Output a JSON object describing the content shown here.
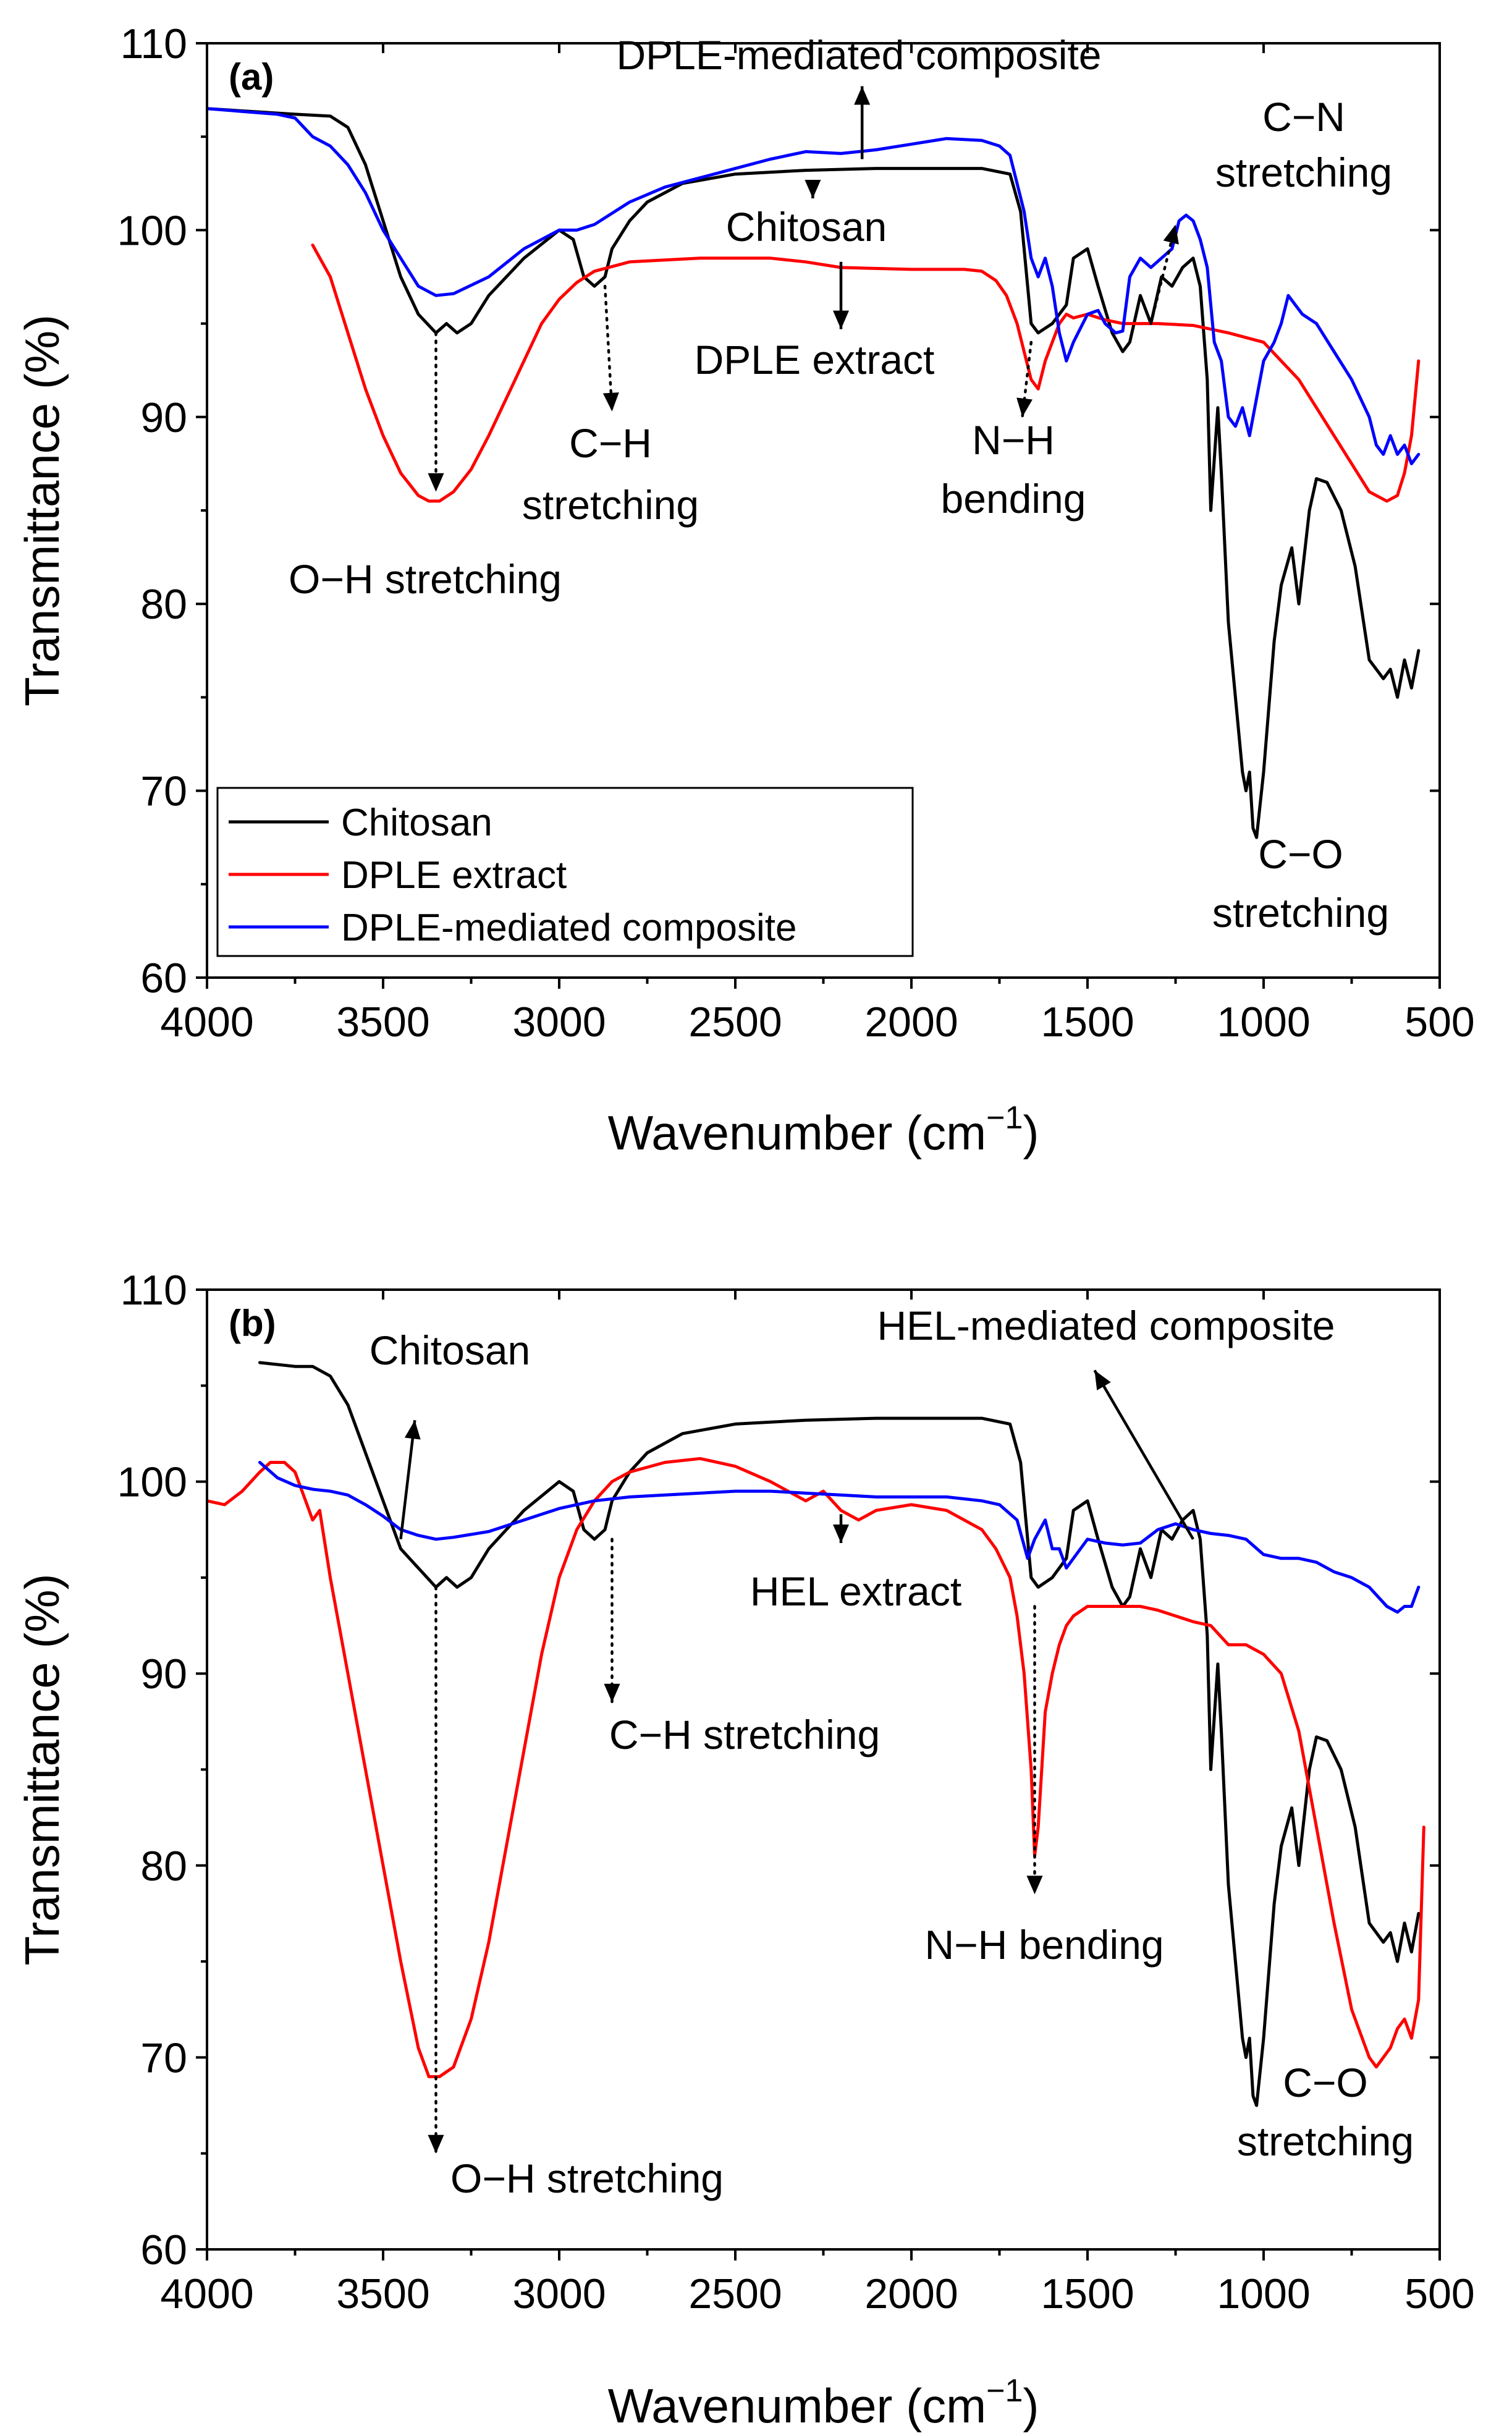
{
  "chart_data": [
    {
      "type": "line",
      "panel_label": "(a)",
      "xlabel": "Wavenumber (cm",
      "xlabel_sup": "−1",
      "xlabel_end": ")",
      "ylabel": "Transmittance (%)",
      "xlim": [
        4000,
        500
      ],
      "ylim": [
        60,
        110
      ],
      "xticks": [
        4000,
        3500,
        3000,
        2500,
        2000,
        1500,
        1000,
        500
      ],
      "yticks": [
        60,
        70,
        80,
        90,
        100,
        110
      ],
      "legend": {
        "placement": "lower-left",
        "entries": [
          {
            "label": "Chitosan",
            "color": "#000000"
          },
          {
            "label": "DPLE extract",
            "color": "#ff0000"
          },
          {
            "label": "DPLE-mediated composite",
            "color": "#0000ff"
          }
        ]
      },
      "series": [
        {
          "name": "Chitosan",
          "color": "#000000",
          "x": [
            4000,
            3750,
            3650,
            3600,
            3550,
            3500,
            3450,
            3400,
            3350,
            3320,
            3290,
            3250,
            3200,
            3100,
            3000,
            2960,
            2930,
            2900,
            2870,
            2850,
            2800,
            2750,
            2650,
            2500,
            2300,
            2100,
            1900,
            1800,
            1720,
            1690,
            1660,
            1640,
            1600,
            1560,
            1540,
            1500,
            1470,
            1430,
            1400,
            1380,
            1350,
            1320,
            1290,
            1260,
            1230,
            1200,
            1180,
            1160,
            1150,
            1130,
            1120,
            1110,
            1100,
            1080,
            1060,
            1050,
            1040,
            1030,
            1020,
            1000,
            970,
            950,
            920,
            900,
            870,
            850,
            820,
            780,
            740,
            700,
            680,
            660,
            640,
            620,
            600,
            580,
            560
          ],
          "y": [
            106.5,
            106.2,
            106.1,
            105.5,
            103.5,
            100.5,
            97.5,
            95.5,
            94.5,
            95.0,
            94.5,
            95.0,
            96.5,
            98.5,
            100.0,
            99.5,
            97.5,
            97.0,
            97.5,
            99.0,
            100.5,
            101.5,
            102.5,
            103.0,
            103.2,
            103.3,
            103.3,
            103.3,
            103.0,
            101.0,
            95.0,
            94.5,
            95.0,
            96.0,
            98.5,
            99.0,
            97.0,
            94.5,
            93.5,
            94.0,
            96.5,
            95.0,
            97.5,
            97.0,
            98.0,
            98.5,
            97.0,
            92.0,
            85.0,
            90.5,
            87.0,
            83.0,
            79.0,
            75.0,
            71.0,
            70.0,
            71.0,
            68.0,
            67.5,
            71.0,
            78.0,
            81.0,
            83.0,
            80.0,
            85.0,
            86.7,
            86.5,
            85.0,
            82.0,
            77.0,
            76.5,
            76.0,
            76.5,
            75.0,
            77.0,
            75.5,
            77.5
          ]
        },
        {
          "name": "DPLE extract",
          "color": "#ff0000",
          "x": [
            3700,
            3650,
            3600,
            3550,
            3500,
            3450,
            3400,
            3370,
            3340,
            3300,
            3250,
            3200,
            3150,
            3100,
            3050,
            3000,
            2950,
            2900,
            2800,
            2600,
            2400,
            2300,
            2200,
            2000,
            1850,
            1800,
            1760,
            1730,
            1700,
            1680,
            1660,
            1640,
            1620,
            1600,
            1580,
            1560,
            1540,
            1500,
            1450,
            1400,
            1300,
            1200,
            1100,
            1000,
            950,
            900,
            850,
            800,
            750,
            700,
            650,
            620,
            600,
            580,
            560
          ],
          "y": [
            99.2,
            97.5,
            94.5,
            91.5,
            89.0,
            87.0,
            85.8,
            85.5,
            85.5,
            86.0,
            87.2,
            89.0,
            91.0,
            93.0,
            95.0,
            96.3,
            97.2,
            97.8,
            98.3,
            98.5,
            98.5,
            98.3,
            98.0,
            97.9,
            97.9,
            97.8,
            97.3,
            96.5,
            95.0,
            93.5,
            92.0,
            91.5,
            93.0,
            94.0,
            95.0,
            95.5,
            95.3,
            95.5,
            95.2,
            95.0,
            95.0,
            94.9,
            94.5,
            94.0,
            93.0,
            92.0,
            90.5,
            89.0,
            87.5,
            86.0,
            85.5,
            85.8,
            87.0,
            89.0,
            93.0
          ]
        },
        {
          "name": "DPLE-mediated composite",
          "color": "#0000ff",
          "x": [
            4000,
            3800,
            3750,
            3700,
            3650,
            3600,
            3550,
            3500,
            3450,
            3400,
            3350,
            3300,
            3200,
            3100,
            3000,
            2950,
            2900,
            2800,
            2700,
            2600,
            2500,
            2400,
            2300,
            2200,
            2100,
            2000,
            1900,
            1800,
            1750,
            1720,
            1700,
            1680,
            1660,
            1640,
            1620,
            1600,
            1580,
            1560,
            1540,
            1500,
            1470,
            1450,
            1420,
            1400,
            1380,
            1350,
            1320,
            1290,
            1260,
            1240,
            1220,
            1200,
            1180,
            1160,
            1140,
            1120,
            1100,
            1080,
            1060,
            1040,
            1020,
            1000,
            970,
            950,
            930,
            910,
            890,
            850,
            800,
            750,
            700,
            680,
            660,
            640,
            620,
            600,
            580,
            560
          ],
          "y": [
            106.5,
            106.2,
            106.0,
            105.0,
            104.5,
            103.5,
            102.0,
            100.0,
            98.5,
            97.0,
            96.5,
            96.6,
            97.5,
            99.0,
            100.0,
            100.0,
            100.3,
            101.5,
            102.3,
            102.8,
            103.3,
            103.8,
            104.2,
            104.1,
            104.3,
            104.6,
            104.9,
            104.8,
            104.5,
            104.0,
            102.5,
            101.0,
            98.5,
            97.5,
            98.5,
            97.0,
            94.5,
            93.0,
            94.0,
            95.5,
            95.7,
            95.0,
            94.5,
            94.6,
            97.5,
            98.5,
            98.0,
            98.5,
            99.0,
            100.5,
            100.8,
            100.5,
            99.5,
            98.0,
            94.0,
            93.0,
            90.0,
            89.5,
            90.5,
            89.0,
            91.0,
            93.0,
            94.0,
            95.0,
            96.5,
            96.0,
            95.5,
            95.0,
            93.5,
            92.0,
            90.0,
            88.5,
            88.0,
            89.0,
            88.0,
            88.5,
            87.5,
            88.0
          ]
        }
      ],
      "annotations": [
        {
          "lines": [
            "DPLE-mediated composite"
          ]
        },
        {
          "lines": [
            "Chitosan"
          ]
        },
        {
          "lines": [
            "DPLE extract"
          ]
        },
        {
          "lines": [
            "C−N",
            "stretching"
          ]
        },
        {
          "lines": [
            "C−H",
            "stretching"
          ]
        },
        {
          "lines": [
            "O−H stretching"
          ]
        },
        {
          "lines": [
            "N−H",
            "bending"
          ]
        },
        {
          "lines": [
            "C−O",
            "stretching"
          ]
        }
      ]
    },
    {
      "type": "line",
      "panel_label": "(b)",
      "xlabel": "Wavenumber (cm",
      "xlabel_sup": "−1",
      "xlabel_end": ")",
      "ylabel": "Transmittance (%)",
      "xlim": [
        4000,
        500
      ],
      "ylim": [
        60,
        110
      ],
      "xticks": [
        4000,
        3500,
        3000,
        2500,
        2000,
        1500,
        1000,
        500
      ],
      "yticks": [
        60,
        70,
        80,
        90,
        100,
        110
      ],
      "series": [
        {
          "name": "Chitosan",
          "color": "#000000",
          "x": [
            3850,
            3750,
            3700,
            3650,
            3600,
            3550,
            3500,
            3450,
            3400,
            3350,
            3320,
            3290,
            3250,
            3200,
            3100,
            3000,
            2960,
            2930,
            2900,
            2870,
            2850,
            2800,
            2750,
            2650,
            2500,
            2300,
            2100,
            1900,
            1800,
            1720,
            1690,
            1660,
            1640,
            1600,
            1560,
            1540,
            1500,
            1470,
            1430,
            1400,
            1380,
            1350,
            1320,
            1290,
            1260,
            1230,
            1200,
            1180,
            1160,
            1150,
            1130,
            1120,
            1110,
            1100,
            1080,
            1060,
            1050,
            1040,
            1030,
            1020,
            1000,
            970,
            950,
            920,
            900,
            870,
            850,
            820,
            780,
            740,
            700,
            680,
            660,
            640,
            620,
            600,
            580,
            560
          ],
          "y": [
            106.2,
            106.0,
            106.0,
            105.5,
            104.0,
            101.5,
            99.0,
            96.5,
            95.5,
            94.5,
            95.0,
            94.5,
            95.0,
            96.5,
            98.5,
            100.0,
            99.5,
            97.5,
            97.0,
            97.5,
            99.0,
            100.5,
            101.5,
            102.5,
            103.0,
            103.2,
            103.3,
            103.3,
            103.3,
            103.0,
            101.0,
            95.0,
            94.5,
            95.0,
            96.0,
            98.5,
            99.0,
            97.0,
            94.5,
            93.5,
            94.0,
            96.5,
            95.0,
            97.5,
            97.0,
            98.0,
            98.5,
            97.0,
            92.0,
            85.0,
            90.5,
            87.0,
            83.0,
            79.0,
            75.0,
            71.0,
            70.0,
            71.0,
            68.0,
            67.5,
            71.0,
            78.0,
            81.0,
            83.0,
            80.0,
            85.0,
            86.7,
            86.5,
            85.0,
            82.0,
            77.0,
            76.5,
            76.0,
            76.5,
            75.0,
            77.0,
            75.5,
            77.5
          ]
        },
        {
          "name": "HEL extract",
          "color": "#ff0000",
          "x": [
            4000,
            3950,
            3900,
            3850,
            3820,
            3780,
            3750,
            3720,
            3700,
            3680,
            3650,
            3600,
            3550,
            3500,
            3450,
            3400,
            3370,
            3340,
            3300,
            3250,
            3200,
            3150,
            3100,
            3050,
            3000,
            2950,
            2900,
            2850,
            2800,
            2700,
            2600,
            2500,
            2400,
            2300,
            2250,
            2200,
            2150,
            2100,
            2000,
            1900,
            1800,
            1760,
            1720,
            1700,
            1680,
            1660,
            1650,
            1640,
            1630,
            1620,
            1600,
            1580,
            1560,
            1540,
            1500,
            1450,
            1400,
            1350,
            1300,
            1250,
            1200,
            1150,
            1100,
            1050,
            1000,
            950,
            900,
            850,
            800,
            750,
            700,
            680,
            660,
            640,
            620,
            600,
            580,
            560,
            545
          ],
          "y": [
            99.0,
            98.8,
            99.5,
            100.5,
            101.0,
            101.0,
            100.5,
            99.0,
            98.0,
            98.5,
            95.0,
            90.0,
            85.0,
            80.0,
            75.0,
            70.5,
            69.0,
            69.0,
            69.5,
            72.0,
            76.0,
            81.0,
            86.0,
            91.0,
            95.0,
            97.5,
            99.0,
            100.0,
            100.5,
            101.0,
            101.2,
            100.8,
            100.0,
            99.0,
            99.5,
            98.5,
            98.0,
            98.5,
            98.8,
            98.5,
            97.5,
            96.5,
            95.0,
            93.0,
            90.0,
            85.0,
            80.5,
            82.0,
            85.0,
            88.0,
            90.0,
            91.5,
            92.5,
            93.0,
            93.5,
            93.5,
            93.5,
            93.5,
            93.3,
            93.0,
            92.7,
            92.5,
            91.5,
            91.5,
            91.0,
            90.0,
            87.0,
            82.0,
            77.0,
            72.5,
            70.0,
            69.5,
            70.0,
            70.5,
            71.5,
            72.0,
            71.0,
            73.0,
            82.0
          ]
        },
        {
          "name": "HEL-mediated composite",
          "color": "#0000ff",
          "x": [
            3850,
            3800,
            3750,
            3700,
            3650,
            3600,
            3550,
            3500,
            3450,
            3400,
            3350,
            3300,
            3200,
            3100,
            3000,
            2900,
            2800,
            2700,
            2600,
            2500,
            2400,
            2300,
            2200,
            2100,
            2000,
            1900,
            1800,
            1750,
            1700,
            1670,
            1650,
            1620,
            1600,
            1580,
            1560,
            1540,
            1500,
            1450,
            1400,
            1350,
            1300,
            1250,
            1200,
            1150,
            1100,
            1050,
            1000,
            950,
            900,
            850,
            800,
            750,
            700,
            650,
            620,
            600,
            580,
            560
          ],
          "y": [
            101.0,
            100.2,
            99.8,
            99.6,
            99.5,
            99.3,
            98.8,
            98.2,
            97.5,
            97.2,
            97.0,
            97.1,
            97.4,
            98.0,
            98.6,
            99.0,
            99.2,
            99.3,
            99.4,
            99.5,
            99.5,
            99.4,
            99.3,
            99.2,
            99.2,
            99.2,
            99.0,
            98.8,
            98.0,
            96.0,
            97.0,
            98.0,
            96.5,
            96.5,
            95.5,
            96.0,
            97.0,
            96.8,
            96.7,
            96.8,
            97.5,
            97.8,
            97.5,
            97.3,
            97.2,
            97.0,
            96.2,
            96.0,
            96.0,
            95.8,
            95.3,
            95.0,
            94.5,
            93.5,
            93.2,
            93.5,
            93.5,
            94.5
          ]
        }
      ],
      "annotations": [
        {
          "lines": [
            "Chitosan"
          ]
        },
        {
          "lines": [
            "HEL-mediated composite"
          ]
        },
        {
          "lines": [
            "HEL extract"
          ]
        },
        {
          "lines": [
            "C−H stretching"
          ]
        },
        {
          "lines": [
            "O−H stretching"
          ]
        },
        {
          "lines": [
            "N−H bending"
          ]
        },
        {
          "lines": [
            "C−O",
            "stretching"
          ]
        }
      ]
    }
  ]
}
